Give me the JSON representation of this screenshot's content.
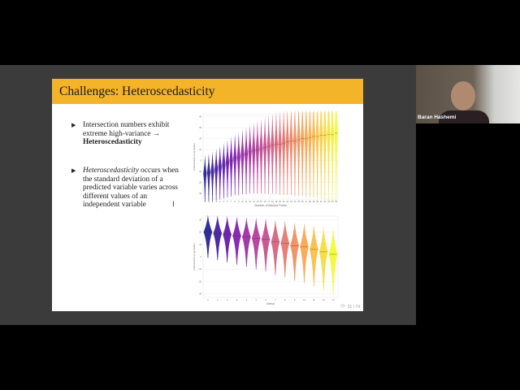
{
  "slide": {
    "title": "Challenges: Heteroscedasticity",
    "bullets": [
      {
        "text": "Intersection numbers exhibit extreme high-variance → ",
        "bold": "Heteroscedasticity"
      },
      {
        "italic": "Heteroscedasticity",
        "text": " occurs when the standard deviation of a predicted variable varies across different values of an independent variable"
      }
    ],
    "bullet_glyph": "▶",
    "cursor_glyph": "I",
    "page": "21 / 74"
  },
  "participant": {
    "name": "Baran Hashemi"
  },
  "chart_data": [
    {
      "type": "violin",
      "title": "",
      "xlabel": "Number of Marked Points",
      "ylabel": "Intersections (Log Scale)",
      "categories": [
        0,
        1,
        2,
        3,
        4,
        5,
        6,
        7,
        8,
        9,
        10,
        11,
        12,
        13,
        14,
        15,
        16,
        17,
        18,
        19,
        20,
        21,
        22,
        23,
        24,
        25,
        26,
        27,
        28,
        29,
        30,
        31,
        32,
        33,
        34,
        35
      ],
      "medians": [
        -12,
        -11,
        -10,
        -8,
        -6,
        -4,
        -2,
        0,
        2,
        3,
        5,
        6,
        8,
        9,
        10,
        11,
        12,
        13,
        14,
        15,
        15,
        16,
        17,
        18,
        18,
        19,
        20,
        20,
        21,
        22,
        22,
        23,
        23,
        24,
        24,
        25
      ],
      "ylim": [
        -35,
        42
      ],
      "yticks": [
        -30,
        -20,
        -10,
        0,
        10,
        20,
        30,
        40
      ],
      "colormap": "plasma"
    },
    {
      "type": "violin",
      "title": "",
      "xlabel": "Genus",
      "ylabel": "Intersections (Log Scale)",
      "categories": [
        0,
        1,
        2,
        3,
        4,
        5,
        6,
        7,
        8,
        9,
        10,
        11,
        12,
        13
      ],
      "medians": [
        20,
        19,
        18,
        17,
        16,
        15,
        14,
        12,
        11,
        9,
        8,
        6,
        4,
        2
      ],
      "ylim": [
        -33,
        33
      ],
      "yticks": [
        -30,
        -20,
        -10,
        0,
        10,
        20,
        30
      ],
      "colormap": "plasma"
    }
  ]
}
